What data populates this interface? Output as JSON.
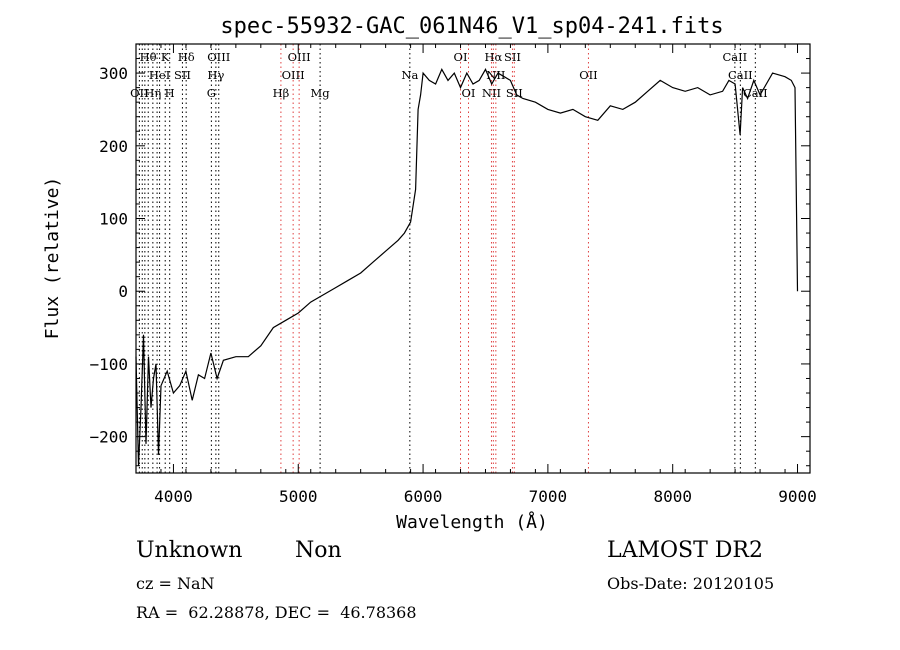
{
  "chart_data": {
    "type": "line",
    "title": "spec-55932-GAC_061N46_V1_sp04-241.fits",
    "xlabel": "Wavelength (Å)",
    "ylabel": "Flux (relative)",
    "xlim": [
      3700,
      9100
    ],
    "ylim": [
      -250,
      340
    ],
    "xticks": [
      4000,
      5000,
      6000,
      7000,
      8000,
      9000
    ],
    "yticks": [
      -200,
      -100,
      0,
      100,
      200,
      300
    ],
    "grid": false,
    "series": [
      {
        "x": [
          3700,
          3720,
          3740,
          3760,
          3780,
          3800,
          3820,
          3840,
          3860,
          3880,
          3900,
          3950,
          4000,
          4050,
          4100,
          4150,
          4200,
          4250,
          4300,
          4350,
          4400,
          4500,
          4600,
          4700,
          4800,
          4900,
          5000,
          5100,
          5200,
          5300,
          5400,
          5500,
          5600,
          5700,
          5800,
          5850,
          5900,
          5940,
          5960,
          5980,
          6000,
          6050,
          6100,
          6150,
          6200,
          6250,
          6300,
          6350,
          6400,
          6450,
          6500,
          6550,
          6600,
          6650,
          6700,
          6750,
          6800,
          6900,
          7000,
          7100,
          7200,
          7300,
          7400,
          7500,
          7600,
          7700,
          7800,
          7900,
          8000,
          8100,
          8200,
          8300,
          8400,
          8450,
          8500,
          8540,
          8560,
          8600,
          8650,
          8700,
          8800,
          8900,
          8950,
          8980,
          9000
        ],
        "y": [
          -90,
          -240,
          -160,
          -60,
          -210,
          -90,
          -160,
          -120,
          -100,
          -225,
          -130,
          -110,
          -140,
          -130,
          -110,
          -150,
          -115,
          -120,
          -85,
          -120,
          -95,
          -90,
          -90,
          -75,
          -50,
          -40,
          -30,
          -15,
          -5,
          5,
          15,
          25,
          40,
          55,
          70,
          80,
          95,
          140,
          250,
          270,
          300,
          290,
          285,
          305,
          290,
          300,
          280,
          300,
          285,
          290,
          305,
          285,
          300,
          295,
          290,
          270,
          265,
          260,
          250,
          245,
          250,
          240,
          235,
          255,
          250,
          260,
          275,
          290,
          280,
          275,
          280,
          270,
          275,
          290,
          285,
          215,
          280,
          265,
          290,
          270,
          300,
          295,
          290,
          280,
          0
        ]
      }
    ],
    "line_annotations": [
      {
        "x": 3727,
        "color": "#000000"
      },
      {
        "x": 3750,
        "color": "#000000"
      },
      {
        "x": 3771,
        "color": "#000000"
      },
      {
        "x": 3798,
        "color": "#000000"
      },
      {
        "x": 3835,
        "color": "#000000"
      },
      {
        "x": 3869,
        "color": "#000000"
      },
      {
        "x": 3889,
        "color": "#000000"
      },
      {
        "x": 3934,
        "color": "#000000"
      },
      {
        "x": 3970,
        "color": "#000000"
      },
      {
        "x": 4072,
        "color": "#000000"
      },
      {
        "x": 4102,
        "color": "#000000"
      },
      {
        "x": 4304,
        "color": "#000000"
      },
      {
        "x": 4340,
        "color": "#000000"
      },
      {
        "x": 4363,
        "color": "#000000"
      },
      {
        "x": 4861,
        "color": "#e04040"
      },
      {
        "x": 4959,
        "color": "#e04040"
      },
      {
        "x": 5007,
        "color": "#e04040"
      },
      {
        "x": 5175,
        "color": "#000000"
      },
      {
        "x": 5894,
        "color": "#000000"
      },
      {
        "x": 6300,
        "color": "#e04040"
      },
      {
        "x": 6364,
        "color": "#e04040"
      },
      {
        "x": 6548,
        "color": "#e04040"
      },
      {
        "x": 6563,
        "color": "#e04040"
      },
      {
        "x": 6583,
        "color": "#e04040"
      },
      {
        "x": 6716,
        "color": "#e04040"
      },
      {
        "x": 6731,
        "color": "#e04040"
      },
      {
        "x": 7325,
        "color": "#e04040"
      },
      {
        "x": 8498,
        "color": "#000000"
      },
      {
        "x": 8542,
        "color": "#000000"
      },
      {
        "x": 8662,
        "color": "#000000"
      }
    ],
    "line_labels": [
      {
        "text": "Hθ",
        "x": 3797,
        "row": 1
      },
      {
        "text": "K",
        "x": 3934,
        "row": 1
      },
      {
        "text": "Hδ",
        "x": 4102,
        "row": 1
      },
      {
        "text": "OIII",
        "x": 4363,
        "row": 1
      },
      {
        "text": "OIII",
        "x": 5007,
        "row": 1
      },
      {
        "text": "OI",
        "x": 6300,
        "row": 1
      },
      {
        "text": "Hα",
        "x": 6563,
        "row": 1
      },
      {
        "text": "SII",
        "x": 6716,
        "row": 1
      },
      {
        "text": "CaII",
        "x": 8498,
        "row": 1
      },
      {
        "text": "HeI",
        "x": 3889,
        "row": 2
      },
      {
        "text": "SII",
        "x": 4072,
        "row": 2
      },
      {
        "text": "Hγ",
        "x": 4340,
        "row": 2
      },
      {
        "text": "OIII",
        "x": 4959,
        "row": 2
      },
      {
        "text": "Na",
        "x": 5894,
        "row": 2
      },
      {
        "text": "NII",
        "x": 6583,
        "row": 2
      },
      {
        "text": "OII",
        "x": 7325,
        "row": 2
      },
      {
        "text": "CaII",
        "x": 8542,
        "row": 2
      },
      {
        "text": "OII",
        "x": 3727,
        "row": 3
      },
      {
        "text": "Hη",
        "x": 3835,
        "row": 3
      },
      {
        "text": "H",
        "x": 3970,
        "row": 3
      },
      {
        "text": "G",
        "x": 4304,
        "row": 3
      },
      {
        "text": "Hβ",
        "x": 4861,
        "row": 3
      },
      {
        "text": "Mg",
        "x": 5175,
        "row": 3
      },
      {
        "text": "OI",
        "x": 6364,
        "row": 3
      },
      {
        "text": "NII",
        "x": 6548,
        "row": 3
      },
      {
        "text": "SII",
        "x": 6731,
        "row": 3
      },
      {
        "text": "CaII",
        "x": 8662,
        "row": 3
      }
    ]
  },
  "info": {
    "class_label": "Unknown",
    "subclass_label": "Non",
    "survey": "LAMOST DR2",
    "cz": "cz = NaN",
    "obs_date": "Obs-Date: 20120105",
    "coords": "RA =  62.28878, DEC =  46.78368"
  }
}
